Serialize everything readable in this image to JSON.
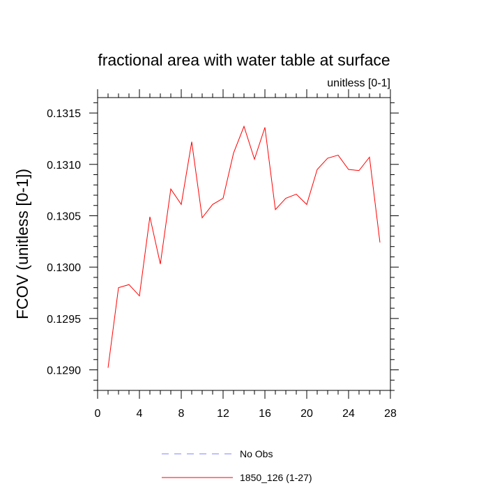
{
  "chart_data": {
    "type": "line",
    "title": "fractional area with water table at surface",
    "subtitle": "unitless [0-1]",
    "xlabel": "",
    "ylabel": "FCOV  (unitless [0-1])",
    "xlim": [
      0,
      28
    ],
    "ylim": [
      0.1288,
      0.13165
    ],
    "x_ticks": [
      0,
      4,
      8,
      12,
      16,
      20,
      24,
      28
    ],
    "x_tick_labels": [
      "0",
      "4",
      "8",
      "12",
      "16",
      "20",
      "24",
      "28"
    ],
    "y_ticks": [
      0.129,
      0.1295,
      0.13,
      0.1305,
      0.131,
      0.1315
    ],
    "y_tick_labels": [
      "0.1290",
      "0.1295",
      "0.1300",
      "0.1305",
      "0.1310",
      "0.1315"
    ],
    "grid": false,
    "legend_position": "bottom-center",
    "series": [
      {
        "name": "No Obs",
        "color": "#8080ff",
        "style": "dashed",
        "x": [],
        "y": []
      },
      {
        "name": "1850_126 (1-27)",
        "color": "#ff0000",
        "style": "solid",
        "x": [
          1,
          2,
          3,
          4,
          5,
          6,
          7,
          8,
          9,
          10,
          11,
          12,
          13,
          14,
          15,
          16,
          17,
          18,
          19,
          20,
          21,
          22,
          23,
          24,
          25,
          26,
          27
        ],
        "y": [
          0.12902,
          0.1298,
          0.12983,
          0.12972,
          0.13049,
          0.13003,
          0.13076,
          0.13061,
          0.13122,
          0.13048,
          0.13061,
          0.13067,
          0.13111,
          0.13137,
          0.13105,
          0.13136,
          0.13056,
          0.13067,
          0.13071,
          0.13061,
          0.13095,
          0.13106,
          0.13109,
          0.13095,
          0.13094,
          0.13107,
          0.13024
        ]
      }
    ]
  }
}
